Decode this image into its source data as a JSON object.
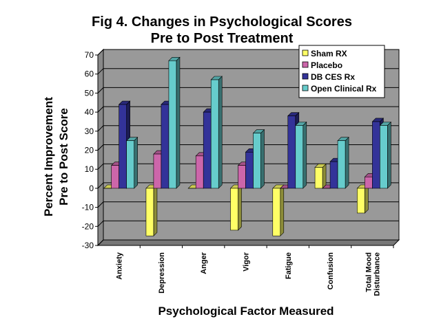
{
  "chart_data": {
    "type": "bar",
    "title": [
      "Fig 4. Changes in Psychological Scores",
      "Pre to Post Treatment"
    ],
    "xlabel": "Psychological Factor Measured",
    "ylabel": [
      "Percent Improvement",
      "Pre to Post Score"
    ],
    "ylim": [
      -30,
      70
    ],
    "yticks": [
      -30,
      -20,
      -10,
      0,
      10,
      20,
      30,
      40,
      50,
      60,
      70
    ],
    "grid": true,
    "legend_position": "top-right",
    "categories": [
      [
        "Anxiety"
      ],
      [
        "Depression"
      ],
      [
        "Anger"
      ],
      [
        "Vigor"
      ],
      [
        "Fatigue"
      ],
      [
        "Confusion"
      ],
      [
        "Total Mood",
        "Disturbance"
      ]
    ],
    "series": [
      {
        "name": "Sham RX",
        "color": "#ffff66",
        "values": [
          0,
          -25,
          0,
          -22,
          -25,
          11,
          -13
        ]
      },
      {
        "name": "Placebo",
        "color": "#cc66aa",
        "values": [
          12,
          18,
          17,
          12,
          0,
          0,
          6
        ]
      },
      {
        "name": "DB CES Rx",
        "color": "#333399",
        "values": [
          44,
          44,
          40,
          19,
          38,
          14,
          35
        ]
      },
      {
        "name": "Open Clinical Rx",
        "color": "#66cccc",
        "values": [
          25,
          67,
          57,
          29,
          33,
          25,
          33
        ]
      }
    ]
  }
}
